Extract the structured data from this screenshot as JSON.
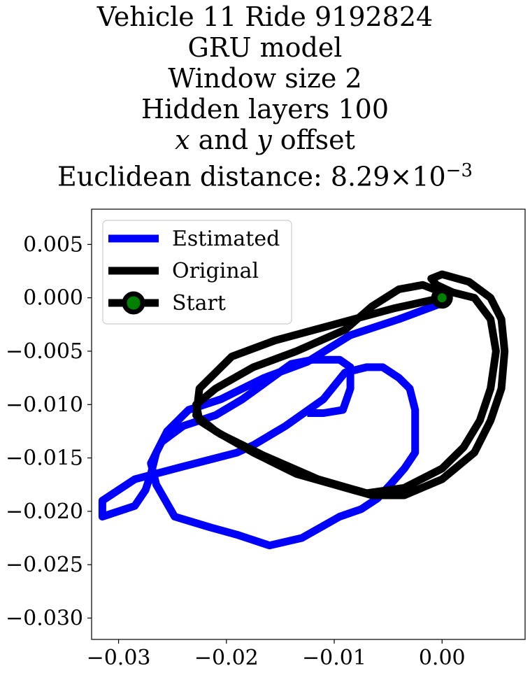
{
  "chart_data": {
    "type": "line",
    "title": {
      "line1": "Vehicle 11 Ride 9192824",
      "line2": "GRU model",
      "line3": "Window size 2",
      "line4": "Hidden layers 100",
      "line5_var_x": "x",
      "line5_and": " and ",
      "line5_var_y": "y",
      "line5_rest": " offset",
      "line6_prefix": "Euclidean distance: 8.29",
      "line6_times": "×",
      "line6_base": "10",
      "line6_exp": "−3"
    },
    "xlim": [
      -0.0325,
      0.0077
    ],
    "ylim": [
      -0.032,
      0.0083
    ],
    "xticks": [
      -0.03,
      -0.02,
      -0.01,
      0.0
    ],
    "xtick_labels": [
      "−0.03",
      "−0.02",
      "−0.01",
      "0.00"
    ],
    "yticks": [
      0.005,
      0.0,
      -0.005,
      -0.01,
      -0.015,
      -0.02,
      -0.025,
      -0.03
    ],
    "ytick_labels": [
      "0.005",
      "0.000",
      "−0.005",
      "−0.010",
      "−0.015",
      "−0.020",
      "−0.025",
      "−0.030"
    ],
    "grid": false,
    "legend_position": "upper-left",
    "series": [
      {
        "name": "Estimated",
        "color": "#0000ff",
        "x": [
          0.0,
          -0.004,
          -0.0085,
          -0.0125,
          -0.0165,
          -0.0205,
          -0.0235,
          -0.0255,
          -0.0265,
          -0.027,
          -0.0275,
          -0.0285,
          -0.0315,
          -0.0315,
          -0.0285,
          -0.024,
          -0.019,
          -0.0175,
          -0.0145,
          -0.011,
          -0.009,
          -0.007,
          -0.0055,
          -0.004,
          -0.003,
          -0.0025,
          -0.0025,
          -0.0025,
          -0.0035,
          -0.0048,
          -0.006,
          -0.0075,
          -0.0095,
          -0.013,
          -0.016,
          -0.019,
          -0.0215,
          -0.0248,
          -0.0265,
          -0.027,
          -0.026,
          -0.024,
          -0.021,
          -0.0185,
          -0.014,
          -0.012,
          -0.0095,
          -0.0085,
          -0.0085,
          -0.0092,
          -0.011,
          -0.0125
        ],
        "y": [
          -0.0005,
          -0.002,
          -0.0035,
          -0.006,
          -0.0075,
          -0.0095,
          -0.0105,
          -0.0125,
          -0.0145,
          -0.0165,
          -0.018,
          -0.0195,
          -0.0205,
          -0.019,
          -0.017,
          -0.0158,
          -0.0145,
          -0.0138,
          -0.012,
          -0.0095,
          -0.007,
          -0.0065,
          -0.0065,
          -0.0075,
          -0.0085,
          -0.0105,
          -0.0125,
          -0.0145,
          -0.016,
          -0.0175,
          -0.0188,
          -0.0198,
          -0.0205,
          -0.0225,
          -0.0232,
          -0.0222,
          -0.0215,
          -0.0205,
          -0.0175,
          -0.0155,
          -0.0135,
          -0.012,
          -0.011,
          -0.0095,
          -0.0062,
          -0.0058,
          -0.0058,
          -0.0065,
          -0.0085,
          -0.0105,
          -0.0108,
          -0.0108
        ]
      },
      {
        "name": "Original",
        "color": "#000000",
        "x": [
          0.0,
          -0.0045,
          -0.01,
          -0.0155,
          -0.0195,
          -0.0225,
          -0.0228,
          -0.021,
          -0.0175,
          -0.0135,
          -0.01,
          -0.0065,
          -0.0035,
          0.0,
          0.003,
          0.0045,
          0.0055,
          0.0058,
          0.0055,
          0.0045,
          0.0025,
          0.0,
          -0.001,
          -0.0005,
          0.001,
          0.003,
          0.0045,
          0.005,
          0.0045,
          0.0035,
          0.002,
          0.0,
          -0.0035,
          -0.007,
          -0.0115,
          -0.0165,
          -0.0205,
          -0.0225,
          -0.0228,
          -0.021,
          -0.0175,
          -0.0135,
          -0.009,
          -0.0065,
          -0.004,
          -0.0018,
          0.0
        ],
        "y": [
          0.0,
          -0.001,
          -0.0025,
          -0.004,
          -0.0055,
          -0.0085,
          -0.011,
          -0.0125,
          -0.0145,
          -0.0165,
          -0.0175,
          -0.0185,
          -0.0185,
          -0.017,
          -0.0145,
          -0.0115,
          -0.0085,
          -0.005,
          -0.002,
          0.0,
          0.0015,
          0.0022,
          0.0018,
          0.0012,
          0.0005,
          0.0,
          -0.002,
          -0.005,
          -0.0085,
          -0.0115,
          -0.014,
          -0.016,
          -0.0178,
          -0.0183,
          -0.017,
          -0.0148,
          -0.0128,
          -0.0115,
          -0.01,
          -0.0085,
          -0.0065,
          -0.005,
          -0.003,
          -0.0008,
          0.0008,
          0.0012,
          0.0005
        ]
      }
    ],
    "start": {
      "name": "Start",
      "x": 0.0,
      "y": 0.0,
      "marker_face": "#008000",
      "marker_edge": "#000000"
    }
  }
}
